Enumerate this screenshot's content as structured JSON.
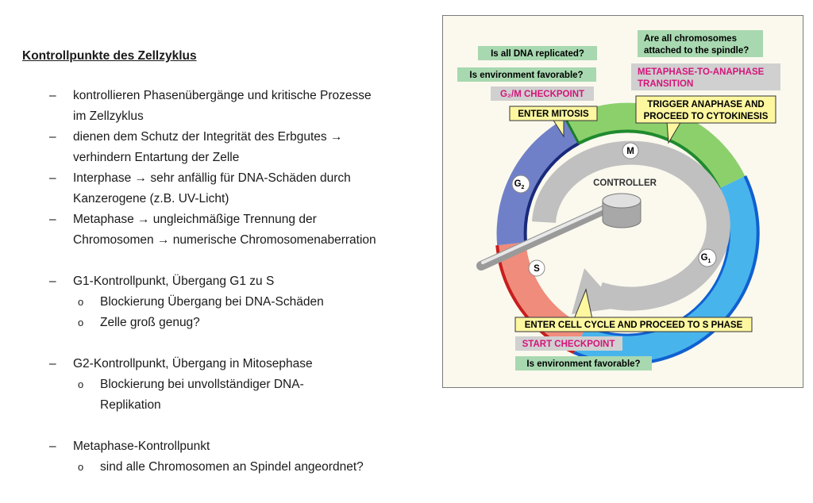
{
  "document": {
    "title": "Kontrollpunkte des Zellzyklus",
    "bullet_symbol": "–",
    "sub_symbol": "o",
    "bullets": [
      {
        "lines": [
          "kontrollieren Phasenübergänge und kritische Prozesse",
          "im Zellzyklus"
        ]
      },
      {
        "lines": [
          "dienen dem Schutz der Integrität des Erbgutes →",
          "verhindern Entartung der Zelle"
        ]
      },
      {
        "lines": [
          "Interphase → sehr anfällig für DNA-Schäden durch",
          "Kanzerogene (z.B. UV-Licht)"
        ]
      },
      {
        "lines": [
          "Metaphase → ungleichmäßige Trennung der",
          "Chromosomen → numerische Chromosomenaberration"
        ]
      }
    ],
    "checkpoints": [
      {
        "heading": "G1-Kontrollpunkt, Übergang G1 zu S",
        "subs": [
          [
            "Blockierung Übergang bei DNA-Schäden"
          ],
          [
            "Zelle groß genug?"
          ]
        ]
      },
      {
        "heading": "G2-Kontrollpunkt, Übergang in Mitosephase",
        "subs": [
          [
            "Blockierung bei unvollständiger DNA-",
            "Replikation"
          ]
        ]
      },
      {
        "heading": "Metaphase-Kontrollpunkt",
        "subs": [
          [
            "sind alle Chromosomen an Spindel angeordnet?"
          ]
        ]
      }
    ]
  },
  "figure": {
    "colors": {
      "green_box": "#a8d8b0",
      "gray_box": "#d0d0d0",
      "yellow_box": "#fdf7a0",
      "magenta_text": "#d4147a",
      "g2": "#7080c8",
      "m": "#8cd06c",
      "g1": "#48b4ec",
      "s": "#f08c7c",
      "controller": "#c0c0c0",
      "background": "#fbf9ee"
    },
    "g2m": {
      "q1": "Is all DNA replicated?",
      "q2": "Is environment favorable?",
      "checkpoint": "G₂/M CHECKPOINT",
      "action": "ENTER MITOSIS"
    },
    "meta": {
      "q1_line1": "Are all chromosomes",
      "q1_line2": "attached to the spindle?",
      "checkpoint_line1": "METAPHASE-TO-ANAPHASE",
      "checkpoint_line2": "TRANSITION",
      "action_line1": "TRIGGER ANAPHASE AND",
      "action_line2": "PROCEED TO CYTOKINESIS"
    },
    "start": {
      "action": "ENTER CELL CYCLE AND PROCEED TO S PHASE",
      "checkpoint": "START CHECKPOINT",
      "q": "Is environment favorable?"
    },
    "controller_label": "CONTROLLER",
    "phases": {
      "m": "M",
      "g2_main": "G",
      "g2_sub": "2",
      "g1_main": "G",
      "g1_sub": "1",
      "s": "S"
    }
  }
}
